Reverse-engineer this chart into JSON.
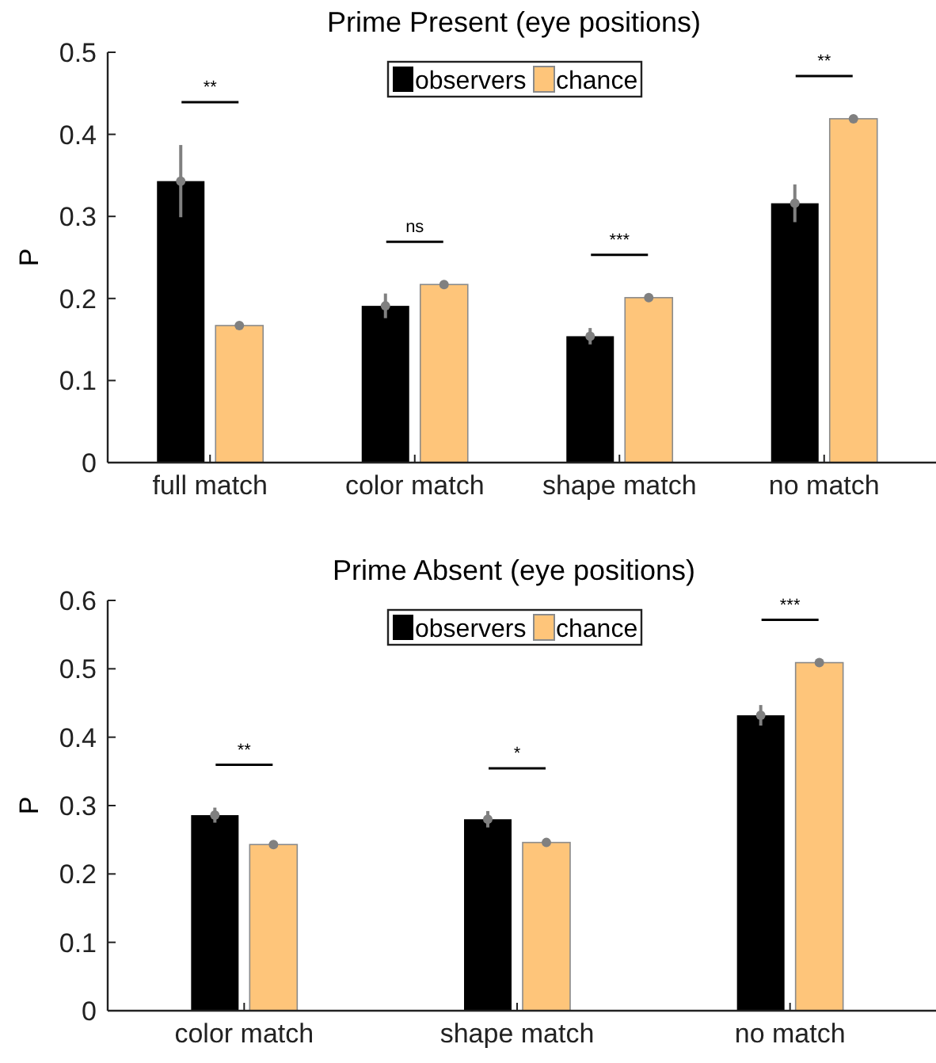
{
  "chart_data": [
    {
      "type": "bar",
      "title": "Prime Present (eye positions)",
      "ylabel": "P",
      "categories": [
        "full match",
        "color match",
        "shape match",
        "no match"
      ],
      "series": [
        {
          "name": "observers",
          "color": "#000000",
          "values": [
            0.343,
            0.191,
            0.154,
            0.316
          ],
          "errors": [
            0.044,
            0.015,
            0.01,
            0.023
          ]
        },
        {
          "name": "chance",
          "color": "#fec57a",
          "values": [
            0.167,
            0.217,
            0.201,
            0.419
          ]
        },
        {
          "type": "scatter",
          "color": "#808080",
          "marker": "circle",
          "x": [
            "full match",
            "color match",
            "shape match",
            "no match",
            "full match",
            "color match",
            "shape match",
            "no match"
          ],
          "values": [
            0.343,
            0.191,
            0.154,
            0.316,
            0.167,
            0.217,
            0.201,
            0.419
          ]
        }
      ],
      "ylim": [
        0,
        0.5
      ],
      "yticks": [
        0,
        0.1,
        0.2,
        0.3,
        0.4,
        0.5
      ],
      "grid": false,
      "legend": "top",
      "annotations": [
        "**",
        "ns",
        "***",
        "**"
      ]
    },
    {
      "type": "bar",
      "title": "Prime Absent (eye positions)",
      "ylabel": "P",
      "categories": [
        "color match",
        "shape match",
        "no match"
      ],
      "series": [
        {
          "name": "observers",
          "color": "#000000",
          "values": [
            0.286,
            0.28,
            0.432
          ],
          "errors": [
            0.011,
            0.012,
            0.015
          ]
        },
        {
          "name": "chance",
          "color": "#fec57a",
          "values": [
            0.243,
            0.246,
            0.509
          ]
        },
        {
          "type": "scatter",
          "color": "#808080",
          "marker": "circle",
          "x": [
            "color match",
            "shape match",
            "no match",
            "color match",
            "shape match",
            "no match"
          ],
          "values": [
            0.286,
            0.28,
            0.432,
            0.243,
            0.246,
            0.509
          ]
        }
      ],
      "ylim": [
        0,
        0.6
      ],
      "yticks": [
        0,
        0.1,
        0.2,
        0.3,
        0.4,
        0.5,
        0.6
      ],
      "grid": false,
      "legend": "top",
      "annotations": [
        "**",
        "*",
        "***"
      ]
    }
  ]
}
